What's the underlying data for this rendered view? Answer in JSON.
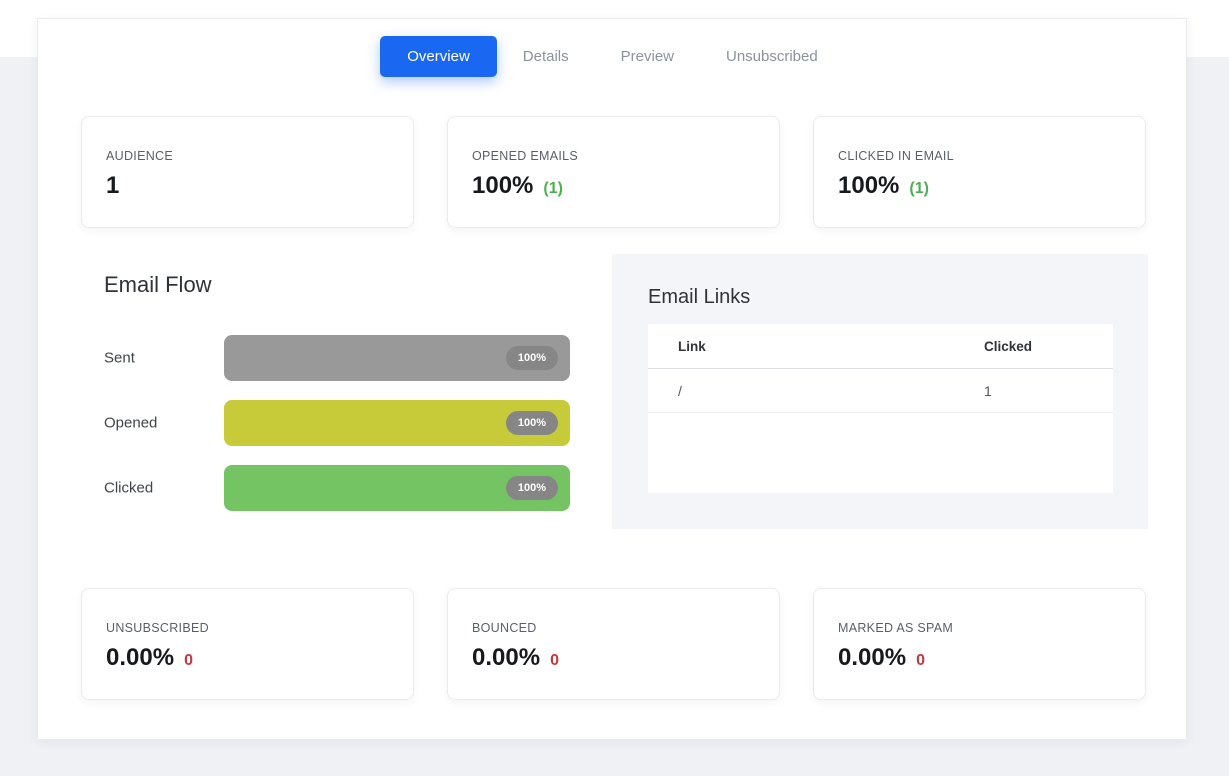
{
  "tabs": [
    {
      "label": "Overview",
      "active": true
    },
    {
      "label": "Details",
      "active": false
    },
    {
      "label": "Preview",
      "active": false
    },
    {
      "label": "Unsubscribed",
      "active": false
    }
  ],
  "stats_top": [
    {
      "label": "AUDIENCE",
      "value": "1",
      "extra": ""
    },
    {
      "label": "OPENED EMAILS",
      "value": "100%",
      "extra": "(1)"
    },
    {
      "label": "CLICKED IN EMAIL",
      "value": "100%",
      "extra": "(1)"
    }
  ],
  "email_flow": {
    "title": "Email Flow",
    "rows": [
      {
        "label": "Sent",
        "pct": "100%",
        "color": "#999999"
      },
      {
        "label": "Opened",
        "pct": "100%",
        "color": "#c7ca39"
      },
      {
        "label": "Clicked",
        "pct": "100%",
        "color": "#75c464"
      }
    ],
    "chart_data": {
      "type": "bar",
      "orientation": "horizontal",
      "categories": [
        "Sent",
        "Opened",
        "Clicked"
      ],
      "values": [
        100,
        100,
        100
      ],
      "unit": "%",
      "title": "Email Flow",
      "xlim": [
        0,
        100
      ],
      "bar_colors": [
        "#999999",
        "#c7ca39",
        "#75c464"
      ]
    }
  },
  "email_links": {
    "title": "Email Links",
    "columns": [
      "Link",
      "Clicked"
    ],
    "rows": [
      {
        "link": "/",
        "clicked": "1"
      }
    ]
  },
  "stats_bottom": [
    {
      "label": "UNSUBSCRIBED",
      "value": "0.00%",
      "extra": "0"
    },
    {
      "label": "BOUNCED",
      "value": "0.00%",
      "extra": "0"
    },
    {
      "label": "MARKED AS SPAM",
      "value": "0.00%",
      "extra": "0"
    }
  ],
  "colors": {
    "accent_blue": "#1a68f2",
    "green": "#4fae53",
    "red": "#c5373d",
    "badge_gray": "#868686"
  }
}
